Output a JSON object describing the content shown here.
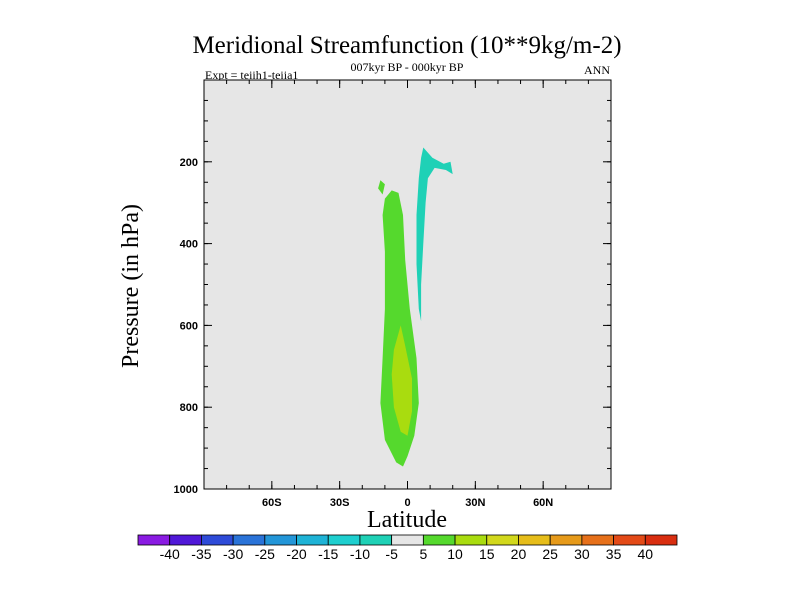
{
  "chart_data": {
    "type": "contour",
    "title": "Meridional Streamfunction (10**9kg/m-2)",
    "subtitle_left": "Expt = teiih1-teiia1",
    "subtitle_center": "007kyr BP - 000kyr BP",
    "subtitle_right": "ANN",
    "xlabel": "Latitude",
    "ylabel": "Pressure (in hPa)",
    "xlim": [
      -90,
      90
    ],
    "ylim": [
      1000,
      0
    ],
    "x_ticks": [
      {
        "value": -60,
        "label": "60S"
      },
      {
        "value": -30,
        "label": "30S"
      },
      {
        "value": 0,
        "label": "0"
      },
      {
        "value": 30,
        "label": "30N"
      },
      {
        "value": 60,
        "label": "60N"
      }
    ],
    "y_ticks": [
      {
        "value": 200,
        "label": "200"
      },
      {
        "value": 400,
        "label": "400"
      },
      {
        "value": 600,
        "label": "600"
      },
      {
        "value": 800,
        "label": "800"
      },
      {
        "value": 1000,
        "label": "1000"
      }
    ],
    "background_color": "#e6e6e6",
    "regions": [
      {
        "level": "5 to 10",
        "color": "#55d92d",
        "points": [
          [
            -10,
            290
          ],
          [
            -7,
            270
          ],
          [
            -4,
            276
          ],
          [
            -2,
            330
          ],
          [
            -1,
            440
          ],
          [
            1,
            560
          ],
          [
            4,
            680
          ],
          [
            5,
            790
          ],
          [
            3,
            870
          ],
          [
            0,
            920
          ],
          [
            -2,
            945
          ],
          [
            -5,
            935
          ],
          [
            -10,
            880
          ],
          [
            -12,
            790
          ],
          [
            -11,
            680
          ],
          [
            -10,
            560
          ],
          [
            -10,
            420
          ],
          [
            -11,
            330
          ]
        ]
      },
      {
        "level": "5 to 10",
        "color": "#55d92d",
        "points": [
          [
            -12,
            245
          ],
          [
            -10,
            255
          ],
          [
            -11,
            280
          ],
          [
            -13,
            265
          ]
        ]
      },
      {
        "level": "10 to 15",
        "color": "#a9dc0f",
        "points": [
          [
            -3,
            600
          ],
          [
            -1,
            650
          ],
          [
            2,
            730
          ],
          [
            2,
            810
          ],
          [
            0,
            870
          ],
          [
            -3,
            860
          ],
          [
            -6,
            800
          ],
          [
            -7,
            720
          ],
          [
            -6,
            660
          ]
        ]
      },
      {
        "level": "-10 to -5",
        "color": "#1fd1b6",
        "points": [
          [
            7,
            165
          ],
          [
            11,
            190
          ],
          [
            16,
            205
          ],
          [
            19,
            200
          ],
          [
            20,
            230
          ],
          [
            17,
            220
          ],
          [
            12,
            215
          ],
          [
            9,
            240
          ],
          [
            8,
            300
          ],
          [
            7,
            400
          ],
          [
            6,
            500
          ],
          [
            6,
            590
          ],
          [
            5,
            560
          ],
          [
            4,
            450
          ],
          [
            4,
            330
          ],
          [
            5,
            240
          ],
          [
            6,
            190
          ]
        ]
      }
    ],
    "colorbar": {
      "labels": [
        "-40",
        "-35",
        "-30",
        "-25",
        "-20",
        "-15",
        "-10",
        "-5",
        "5",
        "10",
        "15",
        "20",
        "25",
        "30",
        "35",
        "40"
      ],
      "colors": [
        "#8a1be2",
        "#5018d8",
        "#2e4bd8",
        "#2a73d8",
        "#2396d8",
        "#1eb3d6",
        "#1ecfcf",
        "#1fd1b6",
        "#e6e6e6",
        "#55d92d",
        "#a9dc0f",
        "#d2d81c",
        "#e6bd1a",
        "#e69a1a",
        "#e6701a",
        "#e34a17",
        "#d92e10"
      ]
    }
  }
}
